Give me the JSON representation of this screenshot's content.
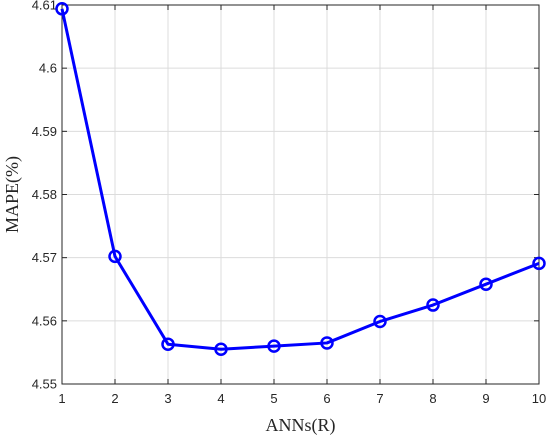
{
  "chart_data": {
    "type": "line",
    "title": "",
    "xlabel": "ANNs(R)",
    "ylabel": "MAPE(%)",
    "xlim": [
      1,
      10
    ],
    "ylim": [
      4.55,
      4.61
    ],
    "xticks": [
      1,
      2,
      3,
      4,
      5,
      6,
      7,
      8,
      9,
      10
    ],
    "yticks": [
      4.55,
      4.56,
      4.57,
      4.58,
      4.59,
      4.6,
      4.61
    ],
    "ytick_labels": [
      "4.55",
      "4.56",
      "4.57",
      "4.58",
      "4.59",
      "4.6",
      "4.61"
    ],
    "grid": true,
    "color": "#0000ff",
    "marker": "circle",
    "series": [
      {
        "x": [
          1,
          2,
          3,
          4,
          5,
          6,
          7,
          8,
          9,
          10
        ],
        "values": [
          4.6094,
          4.5702,
          4.5563,
          4.5555,
          4.556,
          4.5565,
          4.5599,
          4.5625,
          4.5658,
          4.5691
        ]
      }
    ]
  }
}
